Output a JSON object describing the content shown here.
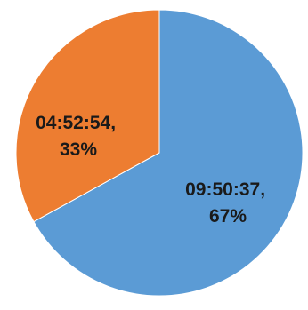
{
  "chart_data": {
    "type": "pie",
    "slices": [
      {
        "label": "09:50:37",
        "percent_label": "67%",
        "value": 0.67,
        "color": "#5b9bd5"
      },
      {
        "label": "04:52:54",
        "percent_label": "33%",
        "value": 0.33,
        "color": "#ed7d31"
      }
    ],
    "start": "12 o'clock, clockwise",
    "legend": "none"
  }
}
